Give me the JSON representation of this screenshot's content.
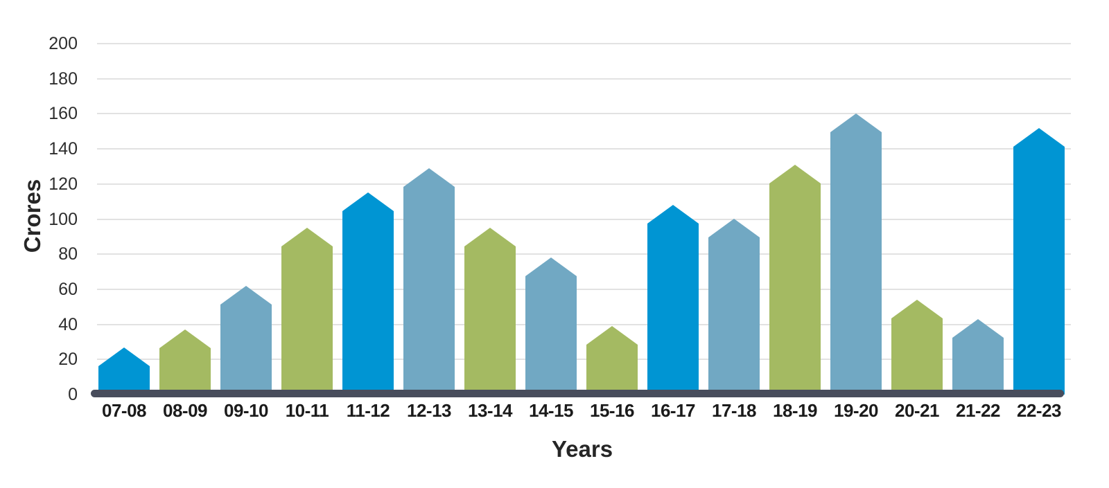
{
  "chart_data": {
    "type": "bar",
    "title": "",
    "xlabel": "Years",
    "ylabel": "Crores",
    "categories": [
      "07-08",
      "08-09",
      "09-10",
      "10-11",
      "11-12",
      "12-13",
      "13-14",
      "14-15",
      "15-16",
      "16-17",
      "17-18",
      "18-19",
      "19-20",
      "20-21",
      "21-22",
      "22-23"
    ],
    "values": [
      27,
      37,
      62,
      95,
      115,
      129,
      95,
      78,
      39,
      108,
      100,
      131,
      160,
      54,
      43,
      152
    ],
    "bar_color_keys": [
      "blue",
      "green",
      "steel",
      "green",
      "blue",
      "steel",
      "green",
      "steel",
      "green",
      "blue",
      "steel",
      "green",
      "steel",
      "green",
      "steel",
      "blue"
    ],
    "ylim": [
      0,
      200
    ],
    "yticks": [
      0,
      20,
      40,
      60,
      80,
      100,
      120,
      140,
      160,
      180,
      200
    ],
    "grid": "horizontal",
    "legend": "none",
    "bar_style": "pointed-pentagon-top"
  },
  "colors": {
    "blue": "#0095d3",
    "green": "#a4ba62",
    "steel": "#71a8c3",
    "axis_line": "#484d5c",
    "gridline": "#e2e2e2",
    "tick_text": "#2e2e2e",
    "label_text": "#262626",
    "background": "#ffffff"
  }
}
